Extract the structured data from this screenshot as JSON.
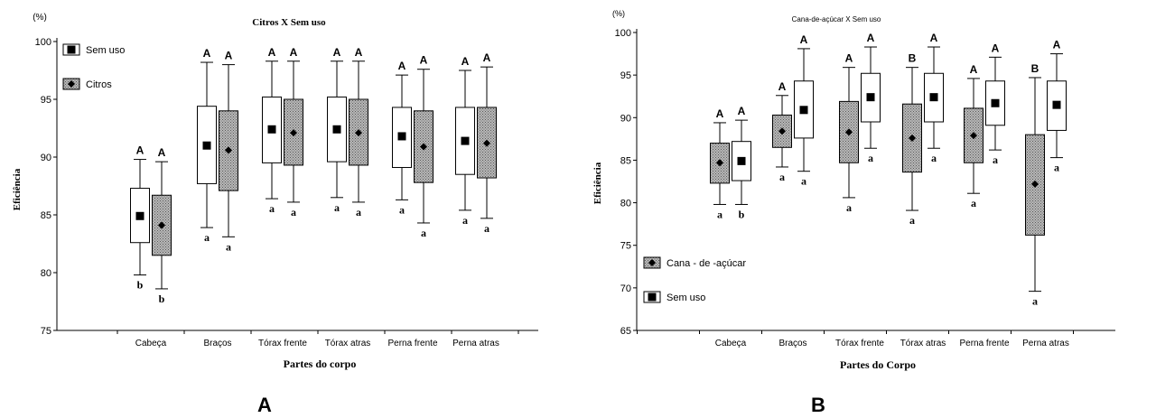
{
  "panels": [
    {
      "letter": "A",
      "chart_data": {
        "type": "box",
        "title": "Citros X Sem uso",
        "xlabel": "Partes do corpo",
        "ylabel": "Eficiência",
        "yunit": "(%)",
        "ylim": [
          75,
          100
        ],
        "yticks": [
          75,
          80,
          85,
          90,
          95,
          100
        ],
        "categories": [
          "Cabeça",
          "Braços",
          "Tórax frente",
          "Tórax atras",
          "Perna frente",
          "Perna atras"
        ],
        "legend_position": "top-left",
        "series": [
          {
            "name": "Sem uso",
            "marker": "square",
            "fill": "#ffffff",
            "boxes": [
              {
                "min": 79.8,
                "q1": 82.6,
                "median": 84.9,
                "q3": 87.3,
                "max": 89.8,
                "top": "A",
                "bottom": "b"
              },
              {
                "min": 83.9,
                "q1": 87.7,
                "median": 91.0,
                "q3": 94.4,
                "max": 98.2,
                "top": "A",
                "bottom": "a"
              },
              {
                "min": 86.4,
                "q1": 89.5,
                "median": 92.4,
                "q3": 95.2,
                "max": 98.3,
                "top": "A",
                "bottom": "a"
              },
              {
                "min": 86.5,
                "q1": 89.6,
                "median": 92.4,
                "q3": 95.2,
                "max": 98.3,
                "top": "A",
                "bottom": "a"
              },
              {
                "min": 86.3,
                "q1": 89.1,
                "median": 91.8,
                "q3": 94.3,
                "max": 97.1,
                "top": "A",
                "bottom": "a"
              },
              {
                "min": 85.4,
                "q1": 88.5,
                "median": 91.4,
                "q3": 94.3,
                "max": 97.5,
                "top": "A",
                "bottom": "a"
              }
            ]
          },
          {
            "name": "Citros",
            "marker": "diamond",
            "fill": "#a9a9a9",
            "boxes": [
              {
                "min": 78.6,
                "q1": 81.5,
                "median": 84.1,
                "q3": 86.7,
                "max": 89.6,
                "top": "A",
                "bottom": "b"
              },
              {
                "min": 83.1,
                "q1": 87.1,
                "median": 90.6,
                "q3": 94.0,
                "max": 98.0,
                "top": "A",
                "bottom": "a"
              },
              {
                "min": 86.1,
                "q1": 89.3,
                "median": 92.1,
                "q3": 95.0,
                "max": 98.3,
                "top": "A",
                "bottom": "a"
              },
              {
                "min": 86.1,
                "q1": 89.3,
                "median": 92.1,
                "q3": 95.0,
                "max": 98.3,
                "top": "A",
                "bottom": "a"
              },
              {
                "min": 84.3,
                "q1": 87.8,
                "median": 90.9,
                "q3": 94.0,
                "max": 97.6,
                "top": "A",
                "bottom": "a"
              },
              {
                "min": 84.7,
                "q1": 88.2,
                "median": 91.2,
                "q3": 94.3,
                "max": 97.8,
                "top": "A",
                "bottom": "a"
              }
            ]
          }
        ]
      }
    },
    {
      "letter": "B",
      "chart_data": {
        "type": "box",
        "title": "Cana-de-açúcar X Sem uso",
        "xlabel": "Partes do Corpo",
        "ylabel": "Eficiência",
        "yunit": "(%)",
        "ylim": [
          65,
          100
        ],
        "yticks": [
          65,
          70,
          75,
          80,
          85,
          90,
          95,
          100
        ],
        "categories": [
          "Cabeça",
          "Braços",
          "Tórax frente",
          "Tórax atras",
          "Perna frente",
          "Perna atras"
        ],
        "legend_position": "bottom-left",
        "series": [
          {
            "name": "Cana - de -açúcar",
            "marker": "diamond",
            "fill": "#a9a9a9",
            "boxes": [
              {
                "min": 79.8,
                "q1": 82.3,
                "median": 84.7,
                "q3": 87.0,
                "max": 89.4,
                "top": "A",
                "bottom": "a"
              },
              {
                "min": 84.2,
                "q1": 86.5,
                "median": 88.4,
                "q3": 90.3,
                "max": 92.6,
                "top": "A",
                "bottom": "a"
              },
              {
                "min": 80.6,
                "q1": 84.7,
                "median": 88.3,
                "q3": 91.9,
                "max": 95.9,
                "top": "A",
                "bottom": "a"
              },
              {
                "min": 79.1,
                "q1": 83.6,
                "median": 87.6,
                "q3": 91.6,
                "max": 95.9,
                "top": "B",
                "bottom": "a"
              },
              {
                "min": 81.1,
                "q1": 84.7,
                "median": 87.9,
                "q3": 91.1,
                "max": 94.6,
                "top": "A",
                "bottom": "a"
              },
              {
                "min": 69.6,
                "q1": 76.2,
                "median": 82.2,
                "q3": 88.0,
                "max": 94.7,
                "top": "B",
                "bottom": "a"
              }
            ]
          },
          {
            "name": "Sem uso",
            "marker": "square",
            "fill": "#ffffff",
            "boxes": [
              {
                "min": 79.8,
                "q1": 82.6,
                "median": 84.9,
                "q3": 87.2,
                "max": 89.7,
                "top": "A",
                "bottom": "b"
              },
              {
                "min": 83.7,
                "q1": 87.6,
                "median": 90.9,
                "q3": 94.3,
                "max": 98.1,
                "top": "A",
                "bottom": "a"
              },
              {
                "min": 86.4,
                "q1": 89.5,
                "median": 92.4,
                "q3": 95.2,
                "max": 98.3,
                "top": "A",
                "bottom": "a"
              },
              {
                "min": 86.4,
                "q1": 89.5,
                "median": 92.4,
                "q3": 95.2,
                "max": 98.3,
                "top": "A",
                "bottom": "a"
              },
              {
                "min": 86.2,
                "q1": 89.1,
                "median": 91.7,
                "q3": 94.3,
                "max": 97.1,
                "top": "A",
                "bottom": "a"
              },
              {
                "min": 85.3,
                "q1": 88.5,
                "median": 91.5,
                "q3": 94.3,
                "max": 97.5,
                "top": "A",
                "bottom": "a"
              }
            ]
          }
        ]
      }
    }
  ]
}
